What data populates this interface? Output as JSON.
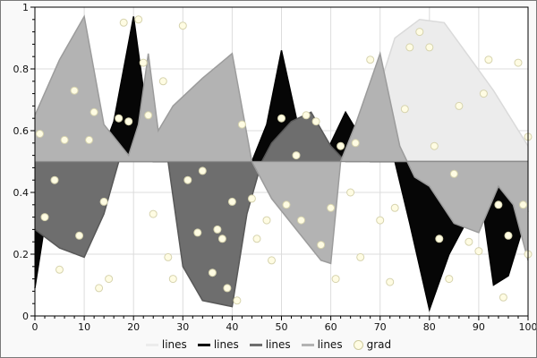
{
  "chart_data": {
    "type": "area",
    "title": "",
    "xlabel": "",
    "ylabel": "",
    "xlim": [
      0,
      100
    ],
    "ylim": [
      0,
      1
    ],
    "grid": true,
    "baseline": 0.5,
    "x_ticks": [
      0,
      10,
      20,
      30,
      40,
      50,
      60,
      70,
      80,
      90,
      100
    ],
    "x_tick_labels": [
      "0",
      "10",
      "20",
      "30",
      "40",
      "50",
      "60",
      "70",
      "80",
      "90",
      "100"
    ],
    "y_ticks": [
      0,
      0.2,
      0.4,
      0.6,
      0.8,
      1
    ],
    "y_tick_labels": [
      "0",
      "0.2",
      "0.4",
      "0.6",
      "0.8",
      "1"
    ],
    "series": [
      {
        "name": "lines",
        "fill": "#ececec",
        "edge": "#dadada",
        "points": [
          [
            0,
            0.5
          ],
          [
            50,
            0.5
          ],
          [
            53,
            0.63
          ],
          [
            56,
            0.66
          ],
          [
            59,
            0.5
          ],
          [
            66,
            0.5
          ],
          [
            69,
            0.7
          ],
          [
            73,
            0.9
          ],
          [
            78,
            0.96
          ],
          [
            83,
            0.95
          ],
          [
            88,
            0.84
          ],
          [
            93,
            0.73
          ],
          [
            100,
            0.55
          ]
        ]
      },
      {
        "name": "lines",
        "fill": "#060606",
        "edge": "#000000",
        "points": [
          [
            0,
            0.09
          ],
          [
            4,
            0.5
          ],
          [
            13,
            0.5
          ],
          [
            16,
            0.63
          ],
          [
            20,
            0.97
          ],
          [
            24,
            0.5
          ],
          [
            44,
            0.5
          ],
          [
            47,
            0.62
          ],
          [
            50,
            0.86
          ],
          [
            54,
            0.57
          ],
          [
            57,
            0.5
          ],
          [
            60,
            0.56
          ],
          [
            63,
            0.66
          ],
          [
            66,
            0.58
          ],
          [
            68,
            0.5
          ],
          [
            73,
            0.5
          ],
          [
            76,
            0.3
          ],
          [
            80,
            0.02
          ],
          [
            84,
            0.2
          ],
          [
            88,
            0.32
          ],
          [
            90,
            0.44
          ],
          [
            93,
            0.1
          ],
          [
            96,
            0.13
          ],
          [
            100,
            0.34
          ]
        ]
      },
      {
        "name": "lines",
        "fill": "#6e6e6e",
        "edge": "#585858",
        "points": [
          [
            0,
            0.28
          ],
          [
            5,
            0.22
          ],
          [
            10,
            0.19
          ],
          [
            14,
            0.33
          ],
          [
            17,
            0.5
          ],
          [
            27,
            0.5
          ],
          [
            30,
            0.16
          ],
          [
            34,
            0.05
          ],
          [
            40,
            0.03
          ],
          [
            43,
            0.33
          ],
          [
            46,
            0.5
          ],
          [
            48,
            0.56
          ],
          [
            52,
            0.63
          ],
          [
            56,
            0.66
          ],
          [
            60,
            0.55
          ],
          [
            63,
            0.5
          ],
          [
            100,
            0.5
          ]
        ]
      },
      {
        "name": "lines",
        "fill": "#b3b3b3",
        "edge": "#9c9c9c",
        "points": [
          [
            0,
            0.65
          ],
          [
            5,
            0.83
          ],
          [
            10,
            0.97
          ],
          [
            14,
            0.62
          ],
          [
            19,
            0.52
          ],
          [
            21,
            0.62
          ],
          [
            23,
            0.85
          ],
          [
            25,
            0.6
          ],
          [
            28,
            0.68
          ],
          [
            34,
            0.77
          ],
          [
            40,
            0.85
          ],
          [
            44,
            0.5
          ],
          [
            48,
            0.38
          ],
          [
            53,
            0.28
          ],
          [
            58,
            0.18
          ],
          [
            60,
            0.17
          ],
          [
            62,
            0.5
          ],
          [
            65,
            0.62
          ],
          [
            70,
            0.85
          ],
          [
            74,
            0.55
          ],
          [
            77,
            0.45
          ],
          [
            80,
            0.42
          ],
          [
            85,
            0.3
          ],
          [
            90,
            0.27
          ],
          [
            94,
            0.42
          ],
          [
            97,
            0.36
          ],
          [
            100,
            0.18
          ]
        ]
      }
    ],
    "scatter": {
      "name": "grad",
      "fill": "#fffce3",
      "stroke": "#d6d3ae",
      "radius": 4,
      "points": [
        [
          1,
          0.59
        ],
        [
          2,
          0.32
        ],
        [
          4,
          0.44
        ],
        [
          5,
          0.15
        ],
        [
          6,
          0.57
        ],
        [
          8,
          0.73
        ],
        [
          9,
          0.26
        ],
        [
          11,
          0.57
        ],
        [
          12,
          0.66
        ],
        [
          13,
          0.09
        ],
        [
          14,
          0.37
        ],
        [
          15,
          0.12
        ],
        [
          17,
          0.64
        ],
        [
          18,
          0.95
        ],
        [
          19,
          0.63
        ],
        [
          21,
          0.96
        ],
        [
          22,
          0.82
        ],
        [
          23,
          0.65
        ],
        [
          24,
          0.33
        ],
        [
          26,
          0.76
        ],
        [
          27,
          0.19
        ],
        [
          28,
          0.12
        ],
        [
          30,
          0.94
        ],
        [
          31,
          0.44
        ],
        [
          33,
          0.27
        ],
        [
          34,
          0.47
        ],
        [
          36,
          0.14
        ],
        [
          37,
          0.28
        ],
        [
          38,
          0.25
        ],
        [
          39,
          0.09
        ],
        [
          40,
          0.37
        ],
        [
          41,
          0.05
        ],
        [
          42,
          0.62
        ],
        [
          44,
          0.38
        ],
        [
          45,
          0.25
        ],
        [
          47,
          0.31
        ],
        [
          48,
          0.18
        ],
        [
          50,
          0.64
        ],
        [
          51,
          0.36
        ],
        [
          53,
          0.52
        ],
        [
          54,
          0.31
        ],
        [
          55,
          0.65
        ],
        [
          57,
          0.63
        ],
        [
          58,
          0.23
        ],
        [
          60,
          0.35
        ],
        [
          61,
          0.12
        ],
        [
          62,
          0.55
        ],
        [
          64,
          0.4
        ],
        [
          65,
          0.56
        ],
        [
          66,
          0.19
        ],
        [
          68,
          0.83
        ],
        [
          70,
          0.31
        ],
        [
          72,
          0.11
        ],
        [
          73,
          0.35
        ],
        [
          75,
          0.67
        ],
        [
          76,
          0.87
        ],
        [
          78,
          0.92
        ],
        [
          80,
          0.87
        ],
        [
          81,
          0.55
        ],
        [
          82,
          0.25
        ],
        [
          84,
          0.12
        ],
        [
          85,
          0.46
        ],
        [
          86,
          0.68
        ],
        [
          88,
          0.24
        ],
        [
          90,
          0.21
        ],
        [
          91,
          0.72
        ],
        [
          92,
          0.83
        ],
        [
          94,
          0.36
        ],
        [
          95,
          0.06
        ],
        [
          96,
          0.26
        ],
        [
          98,
          0.82
        ],
        [
          99,
          0.36
        ],
        [
          100,
          0.2
        ],
        [
          100,
          0.58
        ]
      ]
    },
    "legend": [
      {
        "label": "lines",
        "color": "#ececec",
        "marker": "line"
      },
      {
        "label": "lines",
        "color": "#000000",
        "marker": "line"
      },
      {
        "label": "lines",
        "color": "#6e6e6e",
        "marker": "line"
      },
      {
        "label": "lines",
        "color": "#b3b3b3",
        "marker": "line"
      },
      {
        "label": "grad",
        "color": "#fffce3",
        "marker": "dot"
      }
    ],
    "colors": {
      "plot_background": "#ffffff",
      "page_background": "#f9f9f9",
      "grid": "#dcdcdc",
      "frame": "#000000",
      "baseline_line": "#8c8c8c"
    }
  }
}
